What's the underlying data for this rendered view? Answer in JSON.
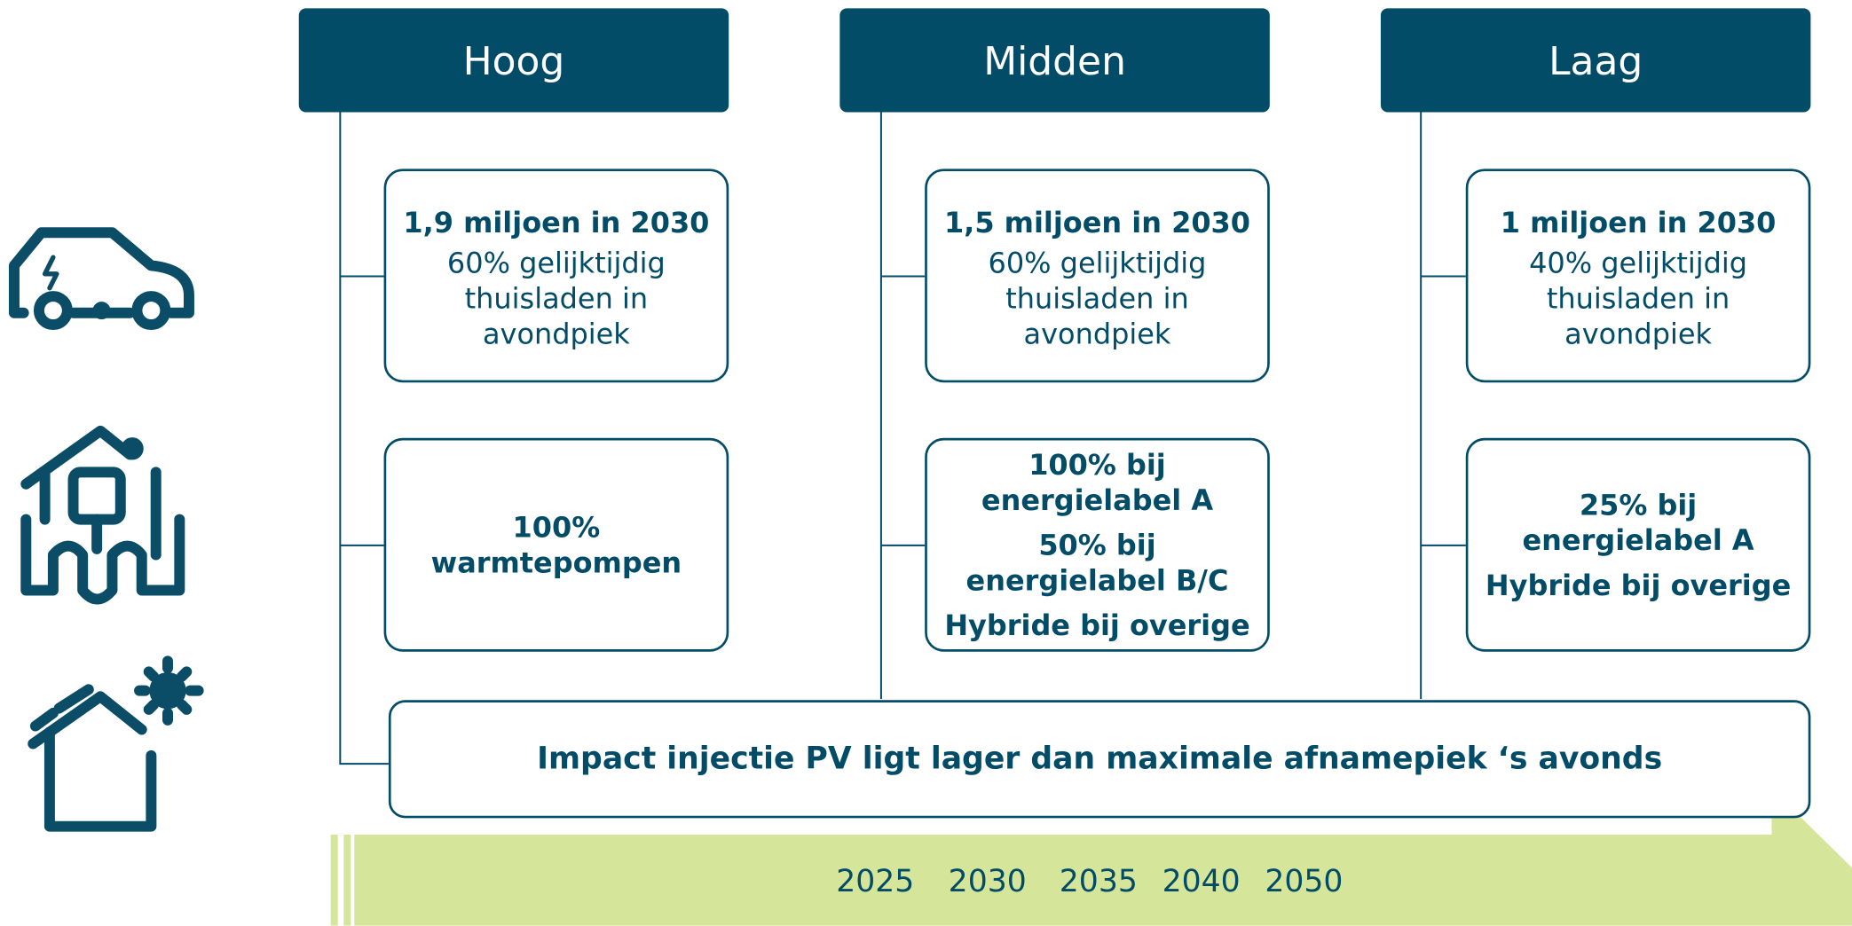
{
  "columns": [
    {
      "header": "Hoog",
      "ev": {
        "title": "1,9 miljoen in 2030",
        "lines": [
          "60% gelijktijdig",
          "thuisladen in avondpiek"
        ]
      },
      "heat": [
        "100% warmtepompen"
      ]
    },
    {
      "header": "Midden",
      "ev": {
        "title": "1,5 miljoen in 2030",
        "lines": [
          "60% gelijktijdig",
          "thuisladen in avondpiek"
        ]
      },
      "heat": [
        "100% bij energielabel A",
        "50% bij energielabel B/C",
        "Hybride bij overige"
      ]
    },
    {
      "header": "Laag",
      "ev": {
        "title": "1 miljoen in 2030",
        "lines": [
          "40% gelijktijdig",
          "thuisladen in avondpiek"
        ]
      },
      "heat": [
        "25% bij energielabel A",
        "Hybride bij overige"
      ]
    }
  ],
  "pv": "Impact injectie PV ligt lager dan maximale afnamepiek ‘s avonds",
  "years": [
    2025,
    2030,
    2035,
    2040,
    2050
  ]
}
